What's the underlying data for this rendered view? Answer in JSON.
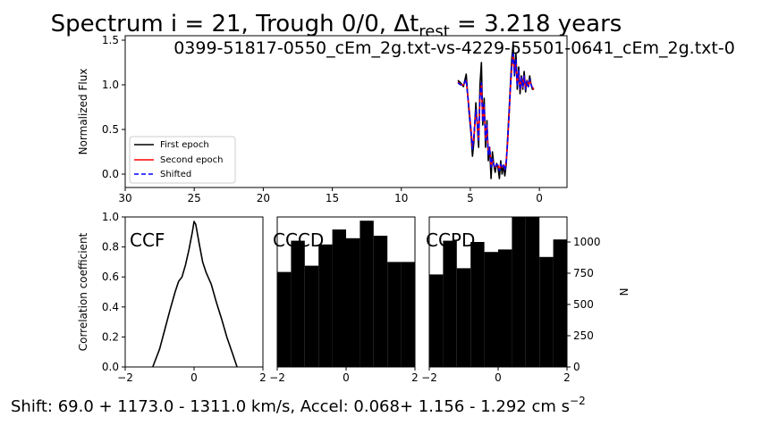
{
  "figure": {
    "title": "Spectrum i = 21, Trough 0/0, Δt",
    "title_sub": "rest",
    "title_tail": " = 3.218 years",
    "subtitle": "0399-51817-0550_cEm_2g.txt-vs-4229-55501-0641_cEm_2g.txt-0",
    "footer_pre": "Shift:  69.0 + 1173.0 - 1311.0 km/s, Accel: 0.068+ 1.156 - 1.292 cm s",
    "footer_sup": "−2"
  },
  "chart_data": [
    {
      "type": "line",
      "id": "spectrum",
      "ylabel": "Normalized Flux",
      "xlabel": "",
      "xlim": [
        30,
        -2
      ],
      "ylim": [
        -0.15,
        1.55
      ],
      "xticks": [
        "30",
        "25",
        "20",
        "15",
        "10",
        "5",
        "0"
      ],
      "xtick_values": [
        30,
        25,
        20,
        15,
        10,
        5,
        0
      ],
      "yticks": [
        "0.0",
        "0.5",
        "1.0",
        "1.5"
      ],
      "ytick_values": [
        0,
        0.5,
        1.0,
        1.5
      ],
      "legend": {
        "placement": "lower left",
        "entries": [
          "First epoch",
          "Second epoch",
          "Shifted"
        ]
      },
      "series": [
        {
          "name": "First epoch",
          "color": "#000000",
          "style": "solid",
          "x": [
            5.9,
            5.7,
            5.5,
            5.3,
            5.1,
            4.95,
            4.85,
            4.75,
            4.6,
            4.5,
            4.4,
            4.3,
            4.2,
            4.1,
            4.0,
            3.9,
            3.8,
            3.7,
            3.6,
            3.5,
            3.4,
            3.3,
            3.2,
            3.1,
            3.0,
            2.9,
            2.8,
            2.7,
            2.6,
            2.5,
            2.4,
            2.3,
            2.2,
            2.1,
            2.0,
            1.9,
            1.8,
            1.7,
            1.6,
            1.5,
            1.4,
            1.3,
            1.2,
            1.1,
            1.0,
            0.9,
            0.8,
            0.7,
            0.6,
            0.5,
            0.4
          ],
          "y": [
            1.05,
            1.02,
            0.98,
            1.12,
            0.7,
            0.45,
            0.2,
            0.35,
            0.8,
            0.55,
            0.3,
            1.0,
            1.25,
            0.55,
            0.85,
            0.3,
            0.6,
            0.15,
            0.3,
            -0.05,
            0.25,
            0.1,
            0.02,
            0.12,
            0.08,
            -0.05,
            0.15,
            0.0,
            0.1,
            -0.02,
            0.12,
            0.4,
            0.7,
            1.0,
            1.3,
            1.45,
            1.1,
            1.35,
            0.95,
            1.2,
            0.9,
            1.1,
            0.95,
            1.15,
            0.92,
            1.05,
            0.98,
            1.1,
            1.0,
            0.95,
            0.95
          ]
        },
        {
          "name": "Second epoch",
          "color": "#ff0000",
          "style": "solid",
          "x": [
            5.9,
            5.7,
            5.5,
            5.3,
            5.1,
            4.95,
            4.85,
            4.75,
            4.6,
            4.5,
            4.4,
            4.3,
            4.2,
            4.1,
            4.0,
            3.9,
            3.8,
            3.7,
            3.6,
            3.5,
            3.4,
            3.3,
            3.2,
            3.1,
            3.0,
            2.9,
            2.8,
            2.7,
            2.6,
            2.5,
            2.4,
            2.3,
            2.2,
            2.1,
            2.0,
            1.9,
            1.8,
            1.7,
            1.6,
            1.5,
            1.4,
            1.3,
            1.2,
            1.1,
            1.0,
            0.9,
            0.8,
            0.7,
            0.6,
            0.5,
            0.4
          ],
          "y": [
            1.03,
            1.0,
            1.0,
            1.05,
            0.75,
            0.5,
            0.3,
            0.4,
            0.7,
            0.6,
            0.4,
            0.85,
            1.0,
            0.6,
            0.75,
            0.4,
            0.55,
            0.25,
            0.3,
            0.1,
            0.15,
            0.1,
            0.08,
            0.1,
            0.1,
            0.05,
            0.1,
            0.08,
            0.1,
            0.05,
            0.15,
            0.35,
            0.65,
            0.95,
            1.2,
            1.35,
            1.15,
            1.25,
            1.0,
            1.15,
            0.95,
            1.08,
            0.97,
            1.1,
            0.95,
            1.05,
            0.98,
            1.05,
            1.0,
            0.97,
            0.95
          ]
        },
        {
          "name": "Shifted",
          "color": "#0000ff",
          "style": "dashed",
          "x": [
            5.9,
            5.7,
            5.5,
            5.3,
            5.1,
            4.95,
            4.85,
            4.75,
            4.6,
            4.5,
            4.4,
            4.3,
            4.2,
            4.1,
            4.0,
            3.9,
            3.8,
            3.7,
            3.6,
            3.5,
            3.4,
            3.3,
            3.2,
            3.1,
            3.0,
            2.9,
            2.8,
            2.7,
            2.6,
            2.5,
            2.4,
            2.3,
            2.2,
            2.1,
            2.0,
            1.9,
            1.8,
            1.7,
            1.6,
            1.5,
            1.4,
            1.3,
            1.2,
            1.1,
            1.0,
            0.9,
            0.8,
            0.7,
            0.6,
            0.5,
            0.4
          ],
          "y": [
            1.02,
            1.0,
            1.0,
            1.06,
            0.72,
            0.48,
            0.28,
            0.42,
            0.72,
            0.58,
            0.38,
            0.88,
            1.02,
            0.58,
            0.78,
            0.38,
            0.55,
            0.22,
            0.3,
            0.08,
            0.17,
            0.1,
            0.07,
            0.11,
            0.1,
            0.04,
            0.11,
            0.07,
            0.1,
            0.04,
            0.14,
            0.36,
            0.66,
            0.96,
            1.22,
            1.38,
            1.12,
            1.28,
            0.98,
            1.16,
            0.94,
            1.08,
            0.97,
            1.1,
            0.95,
            1.04,
            0.98,
            1.06,
            1.0,
            0.96,
            0.95
          ]
        }
      ]
    },
    {
      "type": "line",
      "id": "ccf",
      "label": "CCF",
      "ylabel": "Correlation coefficient",
      "xlim": [
        -2,
        2
      ],
      "ylim": [
        0,
        1.0
      ],
      "xticks": [
        "−2",
        "0",
        "2"
      ],
      "xtick_values": [
        -2,
        0,
        2
      ],
      "yticks": [
        "0.0",
        "0.2",
        "0.4",
        "0.6",
        "0.8",
        "1.0"
      ],
      "ytick_values": [
        0,
        0.2,
        0.4,
        0.6,
        0.8,
        1.0
      ],
      "series": [
        {
          "color": "#000000",
          "x": [
            -1.2,
            -1.0,
            -0.85,
            -0.7,
            -0.55,
            -0.45,
            -0.35,
            -0.25,
            -0.15,
            -0.05,
            0.0,
            0.05,
            0.15,
            0.25,
            0.35,
            0.5,
            0.65,
            0.8,
            0.95,
            1.1,
            1.25
          ],
          "y": [
            0.0,
            0.12,
            0.25,
            0.38,
            0.5,
            0.57,
            0.6,
            0.68,
            0.78,
            0.9,
            0.97,
            0.95,
            0.82,
            0.7,
            0.63,
            0.55,
            0.43,
            0.32,
            0.2,
            0.1,
            0.0
          ]
        }
      ]
    },
    {
      "type": "bar",
      "id": "cccd",
      "label": "CCCD",
      "xlim": [
        -2,
        2
      ],
      "ylim": [
        0,
        1200
      ],
      "xticks": [
        "−2",
        "0",
        "2"
      ],
      "xtick_values": [
        -2,
        0,
        2
      ],
      "bin_edges": [
        -2.0,
        -1.6,
        -1.2,
        -0.8,
        -0.4,
        0.0,
        0.4,
        0.8,
        1.2,
        1.6,
        2.0
      ],
      "values": [
        760,
        1010,
        810,
        980,
        1100,
        1030,
        1170,
        1050,
        840,
        840
      ]
    },
    {
      "type": "bar",
      "id": "ccpd",
      "label": "CCPD",
      "ylabel": "N",
      "xlim": [
        -2,
        2
      ],
      "ylim": [
        0,
        1200
      ],
      "xticks": [
        "−2",
        "0",
        "2"
      ],
      "xtick_values": [
        -2,
        0,
        2
      ],
      "yticks": [
        "0",
        "250",
        "500",
        "750",
        "1000"
      ],
      "ytick_values": [
        0,
        250,
        500,
        750,
        1000
      ],
      "bin_edges": [
        -2.0,
        -1.6,
        -1.2,
        -0.8,
        -0.4,
        0.0,
        0.4,
        0.8,
        1.2,
        1.6,
        2.0
      ],
      "values": [
        740,
        1010,
        790,
        1000,
        920,
        940,
        1230,
        1200,
        880,
        1020
      ]
    }
  ]
}
